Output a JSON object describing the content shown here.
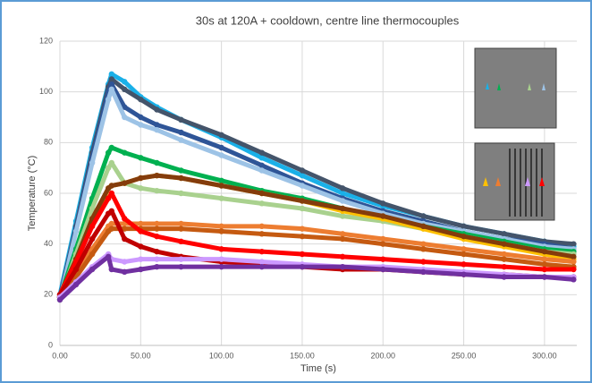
{
  "chart_data": {
    "type": "scatter",
    "title": "30s at 120A + cooldown, centre line thermocouples",
    "x_label": "Time (s)",
    "y_label": "Temperature (°C)",
    "x": [
      0,
      10,
      20,
      30,
      32,
      40,
      50,
      60,
      75,
      100,
      125,
      150,
      175,
      200,
      225,
      250,
      275,
      300,
      318
    ],
    "series": [
      {
        "color": "#1ab0e8",
        "values": [
          20,
          49,
          78,
          103,
          107,
          104,
          98,
          94,
          89,
          82,
          74,
          67,
          60,
          55,
          51,
          47,
          44,
          41,
          39
        ]
      },
      {
        "color": "#44546a",
        "values": [
          19,
          47,
          76,
          102,
          105,
          101,
          97,
          93,
          89,
          83,
          76,
          69,
          62,
          56,
          51,
          47,
          44,
          41,
          40
        ]
      },
      {
        "color": "#2f5597",
        "values": [
          19,
          46,
          74,
          100,
          103,
          94,
          90,
          87,
          84,
          78,
          71,
          64,
          58,
          53,
          49,
          45,
          42,
          40,
          38
        ]
      },
      {
        "color": "#9dc3e6",
        "values": [
          18,
          45,
          72,
          97,
          101,
          90,
          87,
          85,
          81,
          75,
          69,
          63,
          57,
          52,
          48,
          45,
          42,
          39,
          38
        ]
      },
      {
        "color": "#00b050",
        "values": [
          19,
          38,
          58,
          76,
          78,
          76,
          74,
          72,
          69,
          65,
          61,
          58,
          54,
          50,
          47,
          44,
          41,
          38,
          37
        ]
      },
      {
        "color": "#a9d18e",
        "values": [
          18,
          36,
          54,
          70,
          72,
          64,
          62,
          61,
          60,
          58,
          56,
          54,
          51,
          49,
          46,
          43,
          40,
          37,
          36
        ]
      },
      {
        "color": "#ffc000",
        "values": [
          19,
          33,
          48,
          62,
          63,
          64,
          66,
          67,
          66,
          63,
          60,
          57,
          53,
          50,
          46,
          42,
          39,
          36,
          34
        ]
      },
      {
        "color": "#843c0c",
        "values": [
          20,
          34,
          50,
          62,
          63,
          64,
          66,
          67,
          66,
          63,
          60,
          57,
          54,
          51,
          47,
          43,
          40,
          37,
          35
        ]
      },
      {
        "color": "#ed7d31",
        "values": [
          19,
          28,
          38,
          47,
          48,
          48,
          48,
          48,
          48,
          47,
          47,
          46,
          44,
          42,
          40,
          38,
          36,
          34,
          33
        ]
      },
      {
        "color": "#c55a11",
        "values": [
          19,
          27,
          36,
          45,
          46,
          46,
          46,
          46,
          46,
          45,
          44,
          43,
          42,
          40,
          38,
          36,
          34,
          32,
          31
        ]
      },
      {
        "color": "#ff0000",
        "values": [
          20,
          33,
          47,
          58,
          60,
          50,
          45,
          43,
          41,
          38,
          37,
          36,
          35,
          34,
          33,
          32,
          31,
          30,
          30
        ]
      },
      {
        "color": "#c00000",
        "values": [
          20,
          30,
          42,
          52,
          53,
          42,
          39,
          37,
          35,
          33,
          32,
          31,
          30,
          30,
          29,
          28,
          28,
          27,
          27
        ]
      },
      {
        "color": "#cc99ff",
        "values": [
          19,
          25,
          31,
          36,
          34,
          33,
          34,
          34,
          34,
          34,
          33,
          32,
          31,
          31,
          30,
          29,
          28,
          27,
          27
        ]
      },
      {
        "color": "#7030a0",
        "values": [
          18,
          24,
          30,
          35,
          30,
          29,
          30,
          31,
          31,
          31,
          31,
          31,
          31,
          30,
          29,
          28,
          27,
          27,
          26
        ]
      }
    ],
    "xlim": [
      0,
      320
    ],
    "xticks": [
      {
        "value": 0,
        "label": "0.00"
      },
      {
        "value": 50,
        "label": "50.00"
      },
      {
        "value": 100,
        "label": "100.00"
      },
      {
        "value": 150,
        "label": "150.00"
      },
      {
        "value": 200,
        "label": "200.00"
      },
      {
        "value": 250,
        "label": "250.00"
      },
      {
        "value": 300,
        "label": "300.00"
      }
    ],
    "ylim": [
      0,
      120
    ],
    "yticks": [
      0,
      20,
      40,
      60,
      80,
      100,
      120
    ],
    "grid": true
  }
}
